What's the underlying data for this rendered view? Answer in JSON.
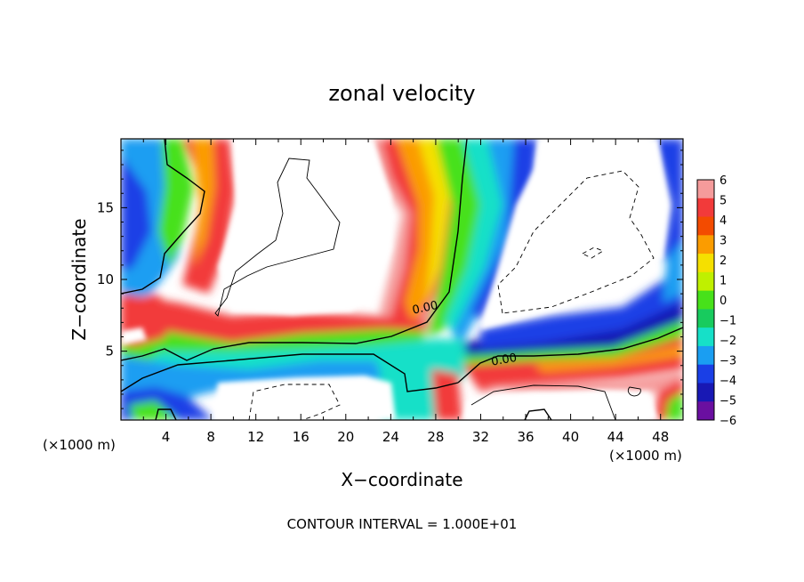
{
  "chart_data": {
    "type": "heatmap",
    "title": "zonal velocity",
    "xlabel": "X−coordinate",
    "ylabel": "Z−coordinate",
    "x_unit": "(×1000 m)",
    "z_unit": "(×1000 m)",
    "xlim": [
      0,
      50
    ],
    "ylim": [
      0.2,
      19.8
    ],
    "x_ticks": [
      4,
      8,
      12,
      16,
      20,
      24,
      28,
      32,
      36,
      40,
      44,
      48
    ],
    "y_ticks": [
      5,
      10,
      15
    ],
    "colorbar": {
      "ticks": [
        6,
        5,
        4,
        3,
        2,
        1,
        0,
        -1,
        -2,
        -3,
        -4,
        -5,
        -6
      ],
      "colors": [
        "#f59b9b",
        "#f23a3a",
        "#f34b00",
        "#fb9c00",
        "#f5e000",
        "#bff000",
        "#47e11a",
        "#18cb5e",
        "#16e0c8",
        "#1a9ef2",
        "#1a3fe6",
        "#1818b4",
        "#6a0fa0"
      ]
    },
    "contours": [
      {
        "label": "0.00",
        "label_x": 26.0,
        "label_z": 7.6
      },
      {
        "label": "0.00",
        "label_x": 33.0,
        "label_z": 4.0
      }
    ],
    "footer": "CONTOUR INTERVAL = 1.000E+01"
  }
}
